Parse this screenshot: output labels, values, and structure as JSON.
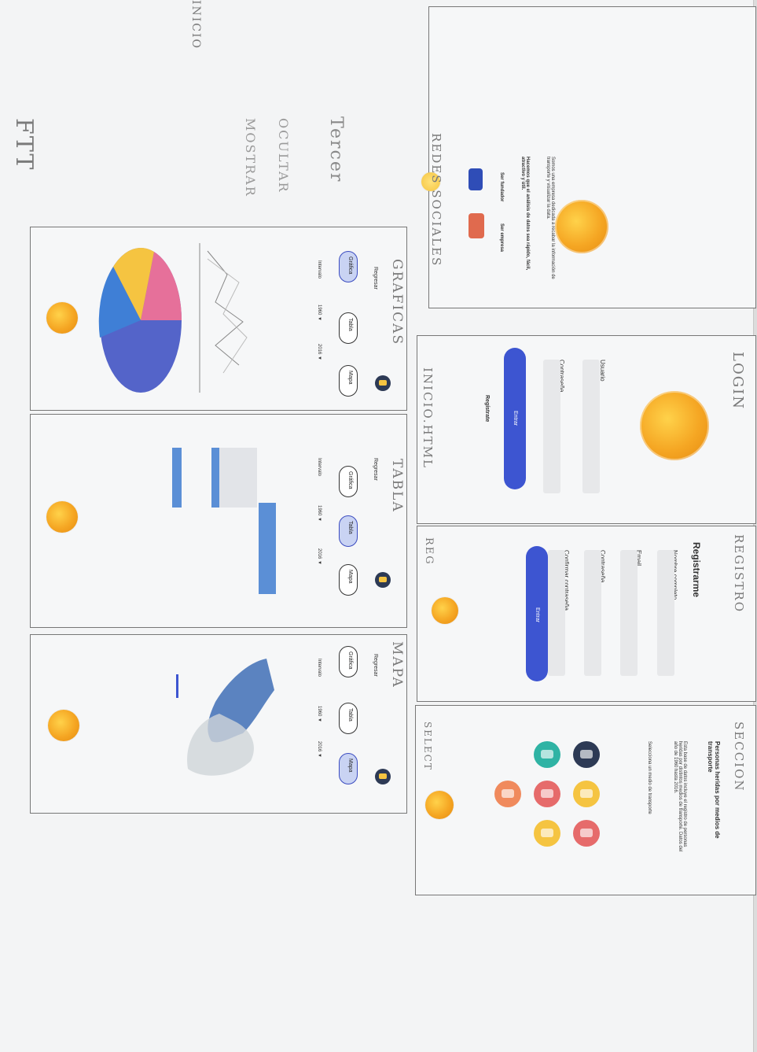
{
  "handwritten": {
    "ftt": "FTT",
    "tercer": "Tercer",
    "ocultar": "OCULTAR",
    "mostrar": "MOSTRAR",
    "inicio_top": "INICIO",
    "login": "LOGIN",
    "registro": "REGISTRO",
    "seccion": "SECCION",
    "redes_sociales": "REDES SOCIALES",
    "graficas": "GRAFICAS",
    "inicio_html": "INICIO.HTML",
    "tabla": "TABLA",
    "reg": "REG",
    "mapa": "MAPA",
    "select": "SELECT"
  },
  "inicio": {
    "intro_text": "Somos una empresa dedicada a recabar la información de transporte y visualizar la data.",
    "mission_text": "Hacemos que el análisis de datos sea rápido, fácil, atractivo y útil.",
    "col_headers": [
      "Ser fundador",
      "Ser empresa"
    ]
  },
  "login": {
    "usuario_label": "Usuario",
    "contrasena_label": "Contraseña",
    "enter_label": "Entrar",
    "registrate_link": "Regístrate"
  },
  "registro": {
    "title": "Registrarme",
    "nombre_label": "Nombre completo",
    "email_label": "Email",
    "contrasena_label": "Contraseña",
    "confirmar_label": "Confirmar contraseña",
    "submit_label": "Entrar"
  },
  "seccion": {
    "title": "Personas heridas por medios de transporte",
    "description": "Esta base de datos incluye el registro de personas heridas por distintos medios de transporte. Datos del año de 1960 hasta 2016.",
    "prompt": "Selecciona un medio de transporte"
  },
  "graficas": {
    "back": "Regresar",
    "tabs": [
      "Gráfica",
      "Tabla",
      "Mapa"
    ],
    "interval_label": "Intervalo",
    "from_year": "1960 ▼",
    "to_year": "2016 ▼"
  },
  "tabla": {
    "back": "Regresar",
    "tabs": [
      "Gráfica",
      "Tabla",
      "Mapa"
    ],
    "interval_label": "Intervalo",
    "from_year": "1960 ▼",
    "to_year": "2016 ▼"
  },
  "mapa": {
    "back": "Regresar",
    "tabs": [
      "Gráfica",
      "Tabla",
      "Mapa"
    ],
    "interval_label": "Intervalo",
    "from_year": "1960 ▼",
    "to_year": "2016 ▼"
  },
  "colors": {
    "accent": "#3d55d1",
    "orange": "#f5a623",
    "pie": [
      "#e6709a",
      "#3f7fd6",
      "#5464c9",
      "#f5c441"
    ]
  }
}
